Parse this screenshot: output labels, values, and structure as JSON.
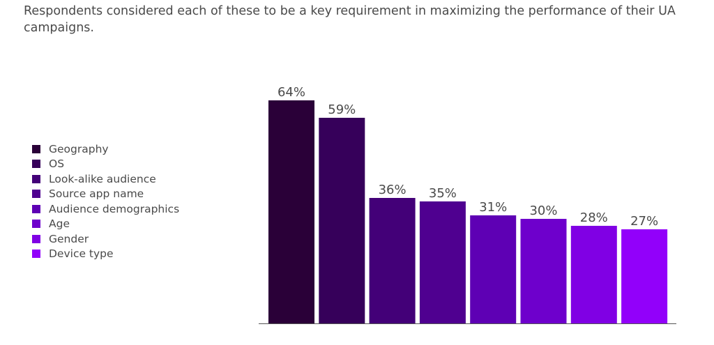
{
  "subtitle": "Respondents considered each of these to be a key requirement in maximizing the performance of their UA campaigns.",
  "chart_data": {
    "type": "bar",
    "title": "",
    "xlabel": "",
    "ylabel": "",
    "ylim": [
      0,
      100
    ],
    "legend_position": "left",
    "grid": false,
    "unit": "%",
    "categories": [
      "Geography",
      "OS",
      "Look-alike audience",
      "Source app name",
      "Audience demographics",
      "Age",
      "Gender",
      "Device type"
    ],
    "values": [
      64,
      59,
      36,
      35,
      31,
      30,
      28,
      27
    ],
    "colors": [
      "#2a0038",
      "#36005a",
      "#430078",
      "#4f0090",
      "#5e00b4",
      "#6e00cc",
      "#8000e4",
      "#9200fa"
    ]
  }
}
